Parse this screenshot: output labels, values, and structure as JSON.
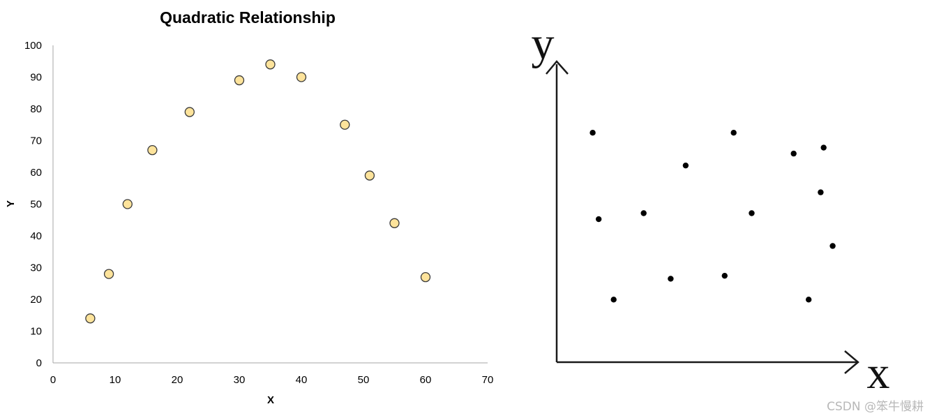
{
  "chart_data": [
    {
      "type": "scatter",
      "title": "Quadratic Relationship",
      "xlabel": "X",
      "ylabel": "Y",
      "xlim": [
        0,
        70
      ],
      "ylim": [
        0,
        100
      ],
      "xticks": [
        "0",
        "10",
        "20",
        "30",
        "40",
        "50",
        "60",
        "70"
      ],
      "yticks": [
        "0",
        "10",
        "20",
        "30",
        "40",
        "50",
        "60",
        "70",
        "80",
        "90",
        "100"
      ],
      "grid": false,
      "legend": "none",
      "marker_fill": "#fde39b",
      "marker_stroke": "#3a3a3a",
      "x": [
        6,
        9,
        12,
        16,
        22,
        30,
        35,
        40,
        47,
        51,
        55,
        60
      ],
      "y": [
        14,
        28,
        50,
        67,
        79,
        89,
        94,
        90,
        75,
        59,
        44,
        27
      ]
    },
    {
      "type": "scatter",
      "title": "",
      "xlabel": "x",
      "ylabel": "y",
      "xlim": [
        0,
        100
      ],
      "ylim": [
        0,
        100
      ],
      "ticks": "none",
      "grid": false,
      "legend": "none",
      "marker_fill": "#000000",
      "x": [
        12,
        14,
        19,
        29,
        38,
        43,
        56,
        59,
        65,
        79,
        84,
        88,
        89,
        92
      ],
      "y": [
        77,
        48,
        21,
        50,
        28,
        66,
        29,
        77,
        50,
        70,
        21,
        57,
        72,
        39
      ]
    }
  ],
  "watermark": "CSDN @笨牛慢耕"
}
